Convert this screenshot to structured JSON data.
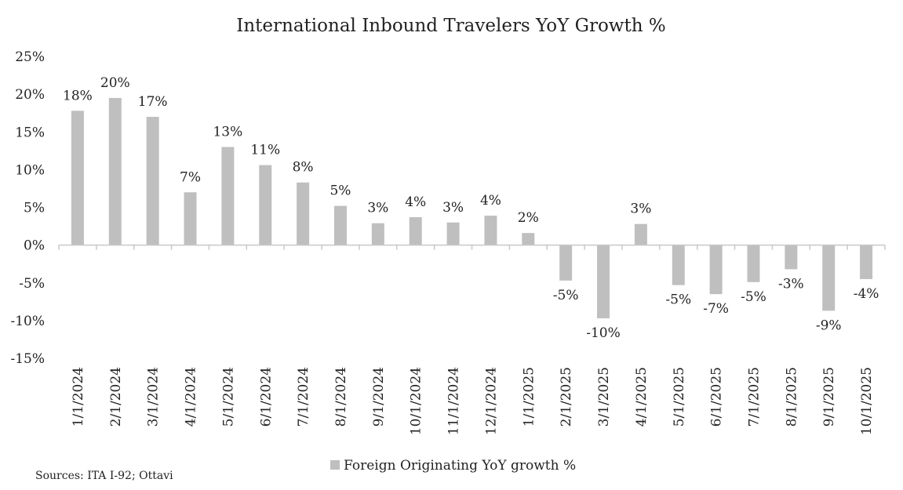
{
  "chart_data": {
    "type": "bar",
    "title": "International Inbound Travelers YoY Growth %",
    "xlabel": "",
    "ylabel": "",
    "ylim": [
      -15,
      25
    ],
    "yticks": [
      "25%",
      "20%",
      "15%",
      "10%",
      "5%",
      "0%",
      "-5%",
      "-10%",
      "-15%"
    ],
    "ytick_values": [
      25,
      20,
      15,
      10,
      5,
      0,
      -5,
      -10,
      -15
    ],
    "grid": false,
    "legend_position": "bottom",
    "bar_color": "#bfbfbf",
    "categories": [
      "1/1/2024",
      "2/1/2024",
      "3/1/2024",
      "4/1/2024",
      "5/1/2024",
      "6/1/2024",
      "7/1/2024",
      "8/1/2024",
      "9/1/2024",
      "10/1/2024",
      "11/1/2024",
      "12/1/2024",
      "1/1/2025",
      "2/1/2025",
      "3/1/2025",
      "4/1/2025",
      "5/1/2025",
      "6/1/2025",
      "7/1/2025",
      "8/1/2025",
      "9/1/2025",
      "10/1/2025"
    ],
    "series": [
      {
        "name": "Foreign Originating YoY growth %",
        "values": [
          17.8,
          19.5,
          17.0,
          7.0,
          13.0,
          10.6,
          8.3,
          5.2,
          2.9,
          3.7,
          3.0,
          3.9,
          1.6,
          -4.7,
          -9.7,
          2.8,
          -5.3,
          -6.5,
          -4.9,
          -3.2,
          -8.7,
          -4.5
        ],
        "labels": [
          "18%",
          "20%",
          "17%",
          "7%",
          "13%",
          "11%",
          "8%",
          "5%",
          "3%",
          "4%",
          "3%",
          "4%",
          "2%",
          "-5%",
          "-10%",
          "3%",
          "-5%",
          "-7%",
          "-5%",
          "-3%",
          "-9%",
          "-4%"
        ]
      }
    ]
  },
  "source": "Sources: ITA I-92; Ottavi"
}
